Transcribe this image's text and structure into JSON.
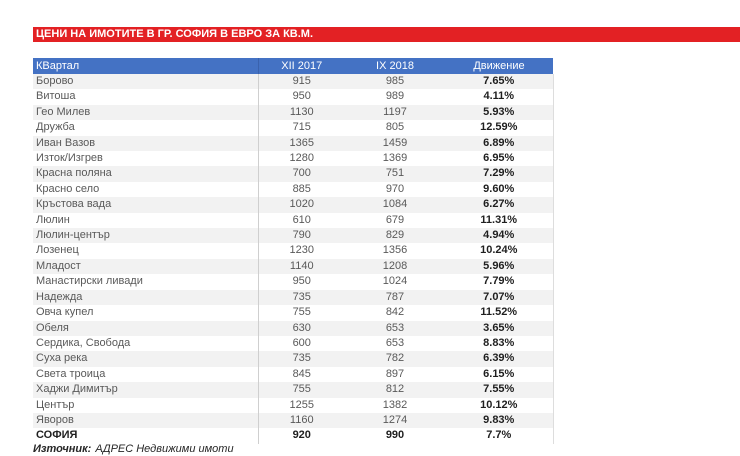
{
  "title_bar": {
    "text": "ЦЕНИ НА ИМОТИТЕ В ГР. СОФИЯ В ЕВРО ЗА КВ.М.",
    "background": "#e32124",
    "text_color": "#ffffff"
  },
  "table": {
    "header": {
      "background": "#4472c4",
      "text_color": "#ffffff",
      "columns": [
        "КВартал",
        "XII 2017",
        "IX 2018",
        "Движение"
      ]
    },
    "rows": [
      {
        "district": "Борово",
        "xii2017": "915",
        "ix2018": "985",
        "change": "7.65%"
      },
      {
        "district": "Витоша",
        "xii2017": "950",
        "ix2018": "989",
        "change": "4.11%"
      },
      {
        "district": "Гео Милев",
        "xii2017": "1130",
        "ix2018": "1197",
        "change": "5.93%"
      },
      {
        "district": "Дружба",
        "xii2017": "715",
        "ix2018": "805",
        "change": "12.59%"
      },
      {
        "district": "Иван Вазов",
        "xii2017": "1365",
        "ix2018": "1459",
        "change": "6.89%"
      },
      {
        "district": "Изток/Изгрев",
        "xii2017": "1280",
        "ix2018": "1369",
        "change": "6.95%"
      },
      {
        "district": "Красна поляна",
        "xii2017": "700",
        "ix2018": "751",
        "change": "7.29%"
      },
      {
        "district": "Красно село",
        "xii2017": "885",
        "ix2018": "970",
        "change": "9.60%"
      },
      {
        "district": "Кръстова вада",
        "xii2017": "1020",
        "ix2018": "1084",
        "change": "6.27%"
      },
      {
        "district": "Люлин",
        "xii2017": "610",
        "ix2018": "679",
        "change": "11.31%"
      },
      {
        "district": "Люлин-център",
        "xii2017": "790",
        "ix2018": "829",
        "change": "4.94%"
      },
      {
        "district": "Лозенец",
        "xii2017": "1230",
        "ix2018": "1356",
        "change": "10.24%"
      },
      {
        "district": "Младост",
        "xii2017": "1140",
        "ix2018": "1208",
        "change": "5.96%"
      },
      {
        "district": "Манастирски ливади",
        "xii2017": "950",
        "ix2018": "1024",
        "change": "7.79%"
      },
      {
        "district": "Надежда",
        "xii2017": "735",
        "ix2018": "787",
        "change": "7.07%"
      },
      {
        "district": "Овча купел",
        "xii2017": "755",
        "ix2018": "842",
        "change": "11.52%"
      },
      {
        "district": "Обеля",
        "xii2017": "630",
        "ix2018": "653",
        "change": "3.65%"
      },
      {
        "district": "Сердика, Свобода",
        "xii2017": "600",
        "ix2018": "653",
        "change": "8.83%"
      },
      {
        "district": "Суха река",
        "xii2017": "735",
        "ix2018": "782",
        "change": "6.39%"
      },
      {
        "district": "Света троица",
        "xii2017": "845",
        "ix2018": "897",
        "change": "6.15%"
      },
      {
        "district": "Хаджи Димитър",
        "xii2017": "755",
        "ix2018": "812",
        "change": "7.55%"
      },
      {
        "district": "Център",
        "xii2017": "1255",
        "ix2018": "1382",
        "change": "10.12%"
      },
      {
        "district": "Яворов",
        "xii2017": "1160",
        "ix2018": "1274",
        "change": "9.83%"
      }
    ],
    "total_row": {
      "district": "СОФИЯ",
      "xii2017": "920",
      "ix2018": "990",
      "change": "7.7%"
    }
  },
  "footer": {
    "source_label": "Източник:",
    "source_text": "АДРЕС Недвижими имоти"
  }
}
